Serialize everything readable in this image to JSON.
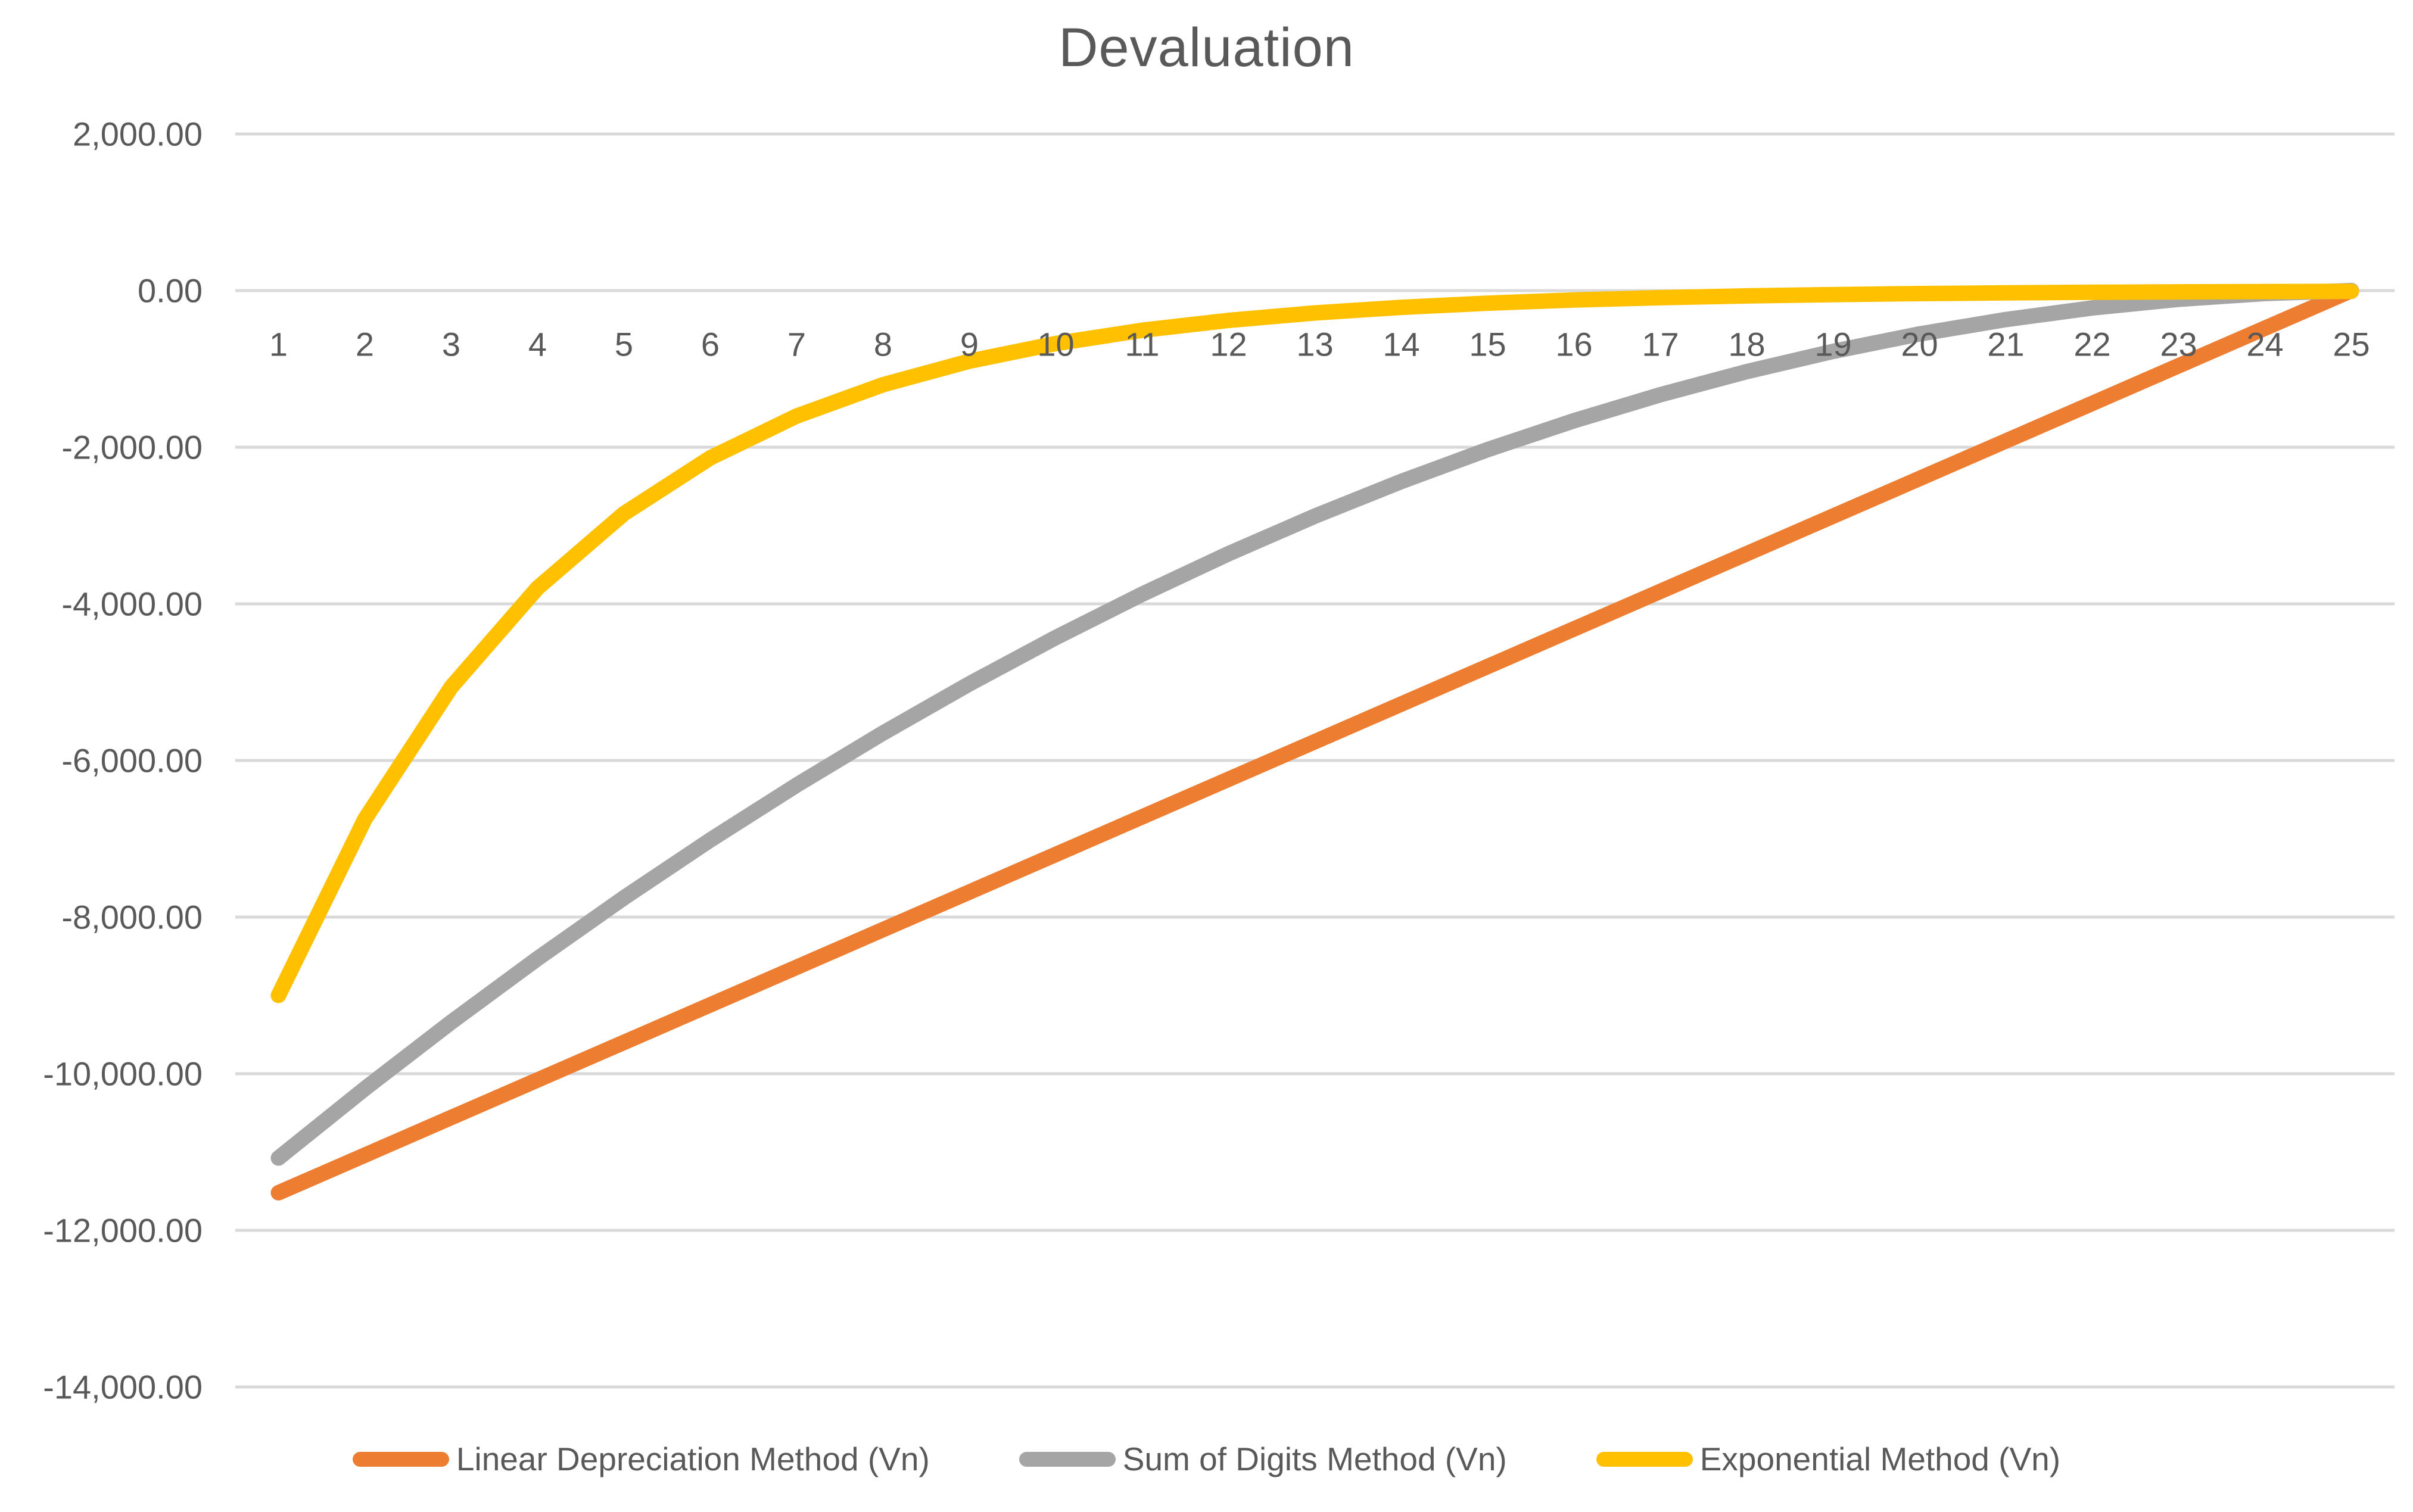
{
  "title": "Devaluation",
  "chart_data": {
    "type": "line",
    "title": "Devaluation",
    "categories": [
      "1",
      "2",
      "3",
      "4",
      "5",
      "6",
      "7",
      "8",
      "9",
      "10",
      "11",
      "12",
      "13",
      "14",
      "15",
      "16",
      "17",
      "18",
      "19",
      "20",
      "21",
      "22",
      "23",
      "24",
      "25"
    ],
    "series": [
      {
        "name": "Linear Depreciation Method (Vn)",
        "color": "#ED7D31",
        "values": [
          -11520,
          -11040,
          -10560,
          -10080,
          -9600,
          -9120,
          -8640,
          -8160,
          -7680,
          -7200,
          -6720,
          -6240,
          -5760,
          -5280,
          -4800,
          -4320,
          -3840,
          -3360,
          -2880,
          -2400,
          -1920,
          -1440,
          -960,
          -480,
          0
        ]
      },
      {
        "name": "Sum of Digits Method (Vn)",
        "color": "#A5A5A5",
        "values": [
          -11076.92,
          -10190.77,
          -9341.54,
          -8529.23,
          -7753.85,
          -7015.38,
          -6313.85,
          -5649.23,
          -5021.54,
          -4430.77,
          -3876.92,
          -3360.0,
          -2880.0,
          -2436.92,
          -2030.77,
          -1661.54,
          -1329.23,
          -1033.85,
          -775.38,
          -553.85,
          -369.23,
          -221.54,
          -110.77,
          -36.92,
          0
        ]
      },
      {
        "name": "Exponential Method (Vn)",
        "color": "#FFC000",
        "values": [
          -9000.0,
          -6750.0,
          -5062.5,
          -3796.88,
          -2847.66,
          -2135.74,
          -1601.81,
          -1201.35,
          -901.02,
          -675.76,
          -506.82,
          -380.12,
          -285.09,
          -213.82,
          -160.36,
          -120.27,
          -90.2,
          -67.65,
          -50.74,
          -38.06,
          -28.54,
          -21.41,
          -16.05,
          -12.04,
          -9.03
        ]
      }
    ],
    "y_axis": {
      "min": -14000,
      "max": 2000,
      "step": 2000,
      "ticks": [
        {
          "label": "2,000.00",
          "value": 2000
        },
        {
          "label": "0.00",
          "value": 0
        },
        {
          "label": "-2,000.00",
          "value": -2000
        },
        {
          "label": "-4,000.00",
          "value": -4000
        },
        {
          "label": "-6,000.00",
          "value": -6000
        },
        {
          "label": "-8,000.00",
          "value": -8000
        },
        {
          "label": "-10,000.00",
          "value": -10000
        },
        {
          "label": "-12,000.00",
          "value": -12000
        },
        {
          "label": "-14,000.00",
          "value": -14000
        }
      ]
    },
    "grid": true,
    "gridline_color": "#D9D9D9",
    "text_color": "#595959",
    "legend_position": "bottom"
  }
}
